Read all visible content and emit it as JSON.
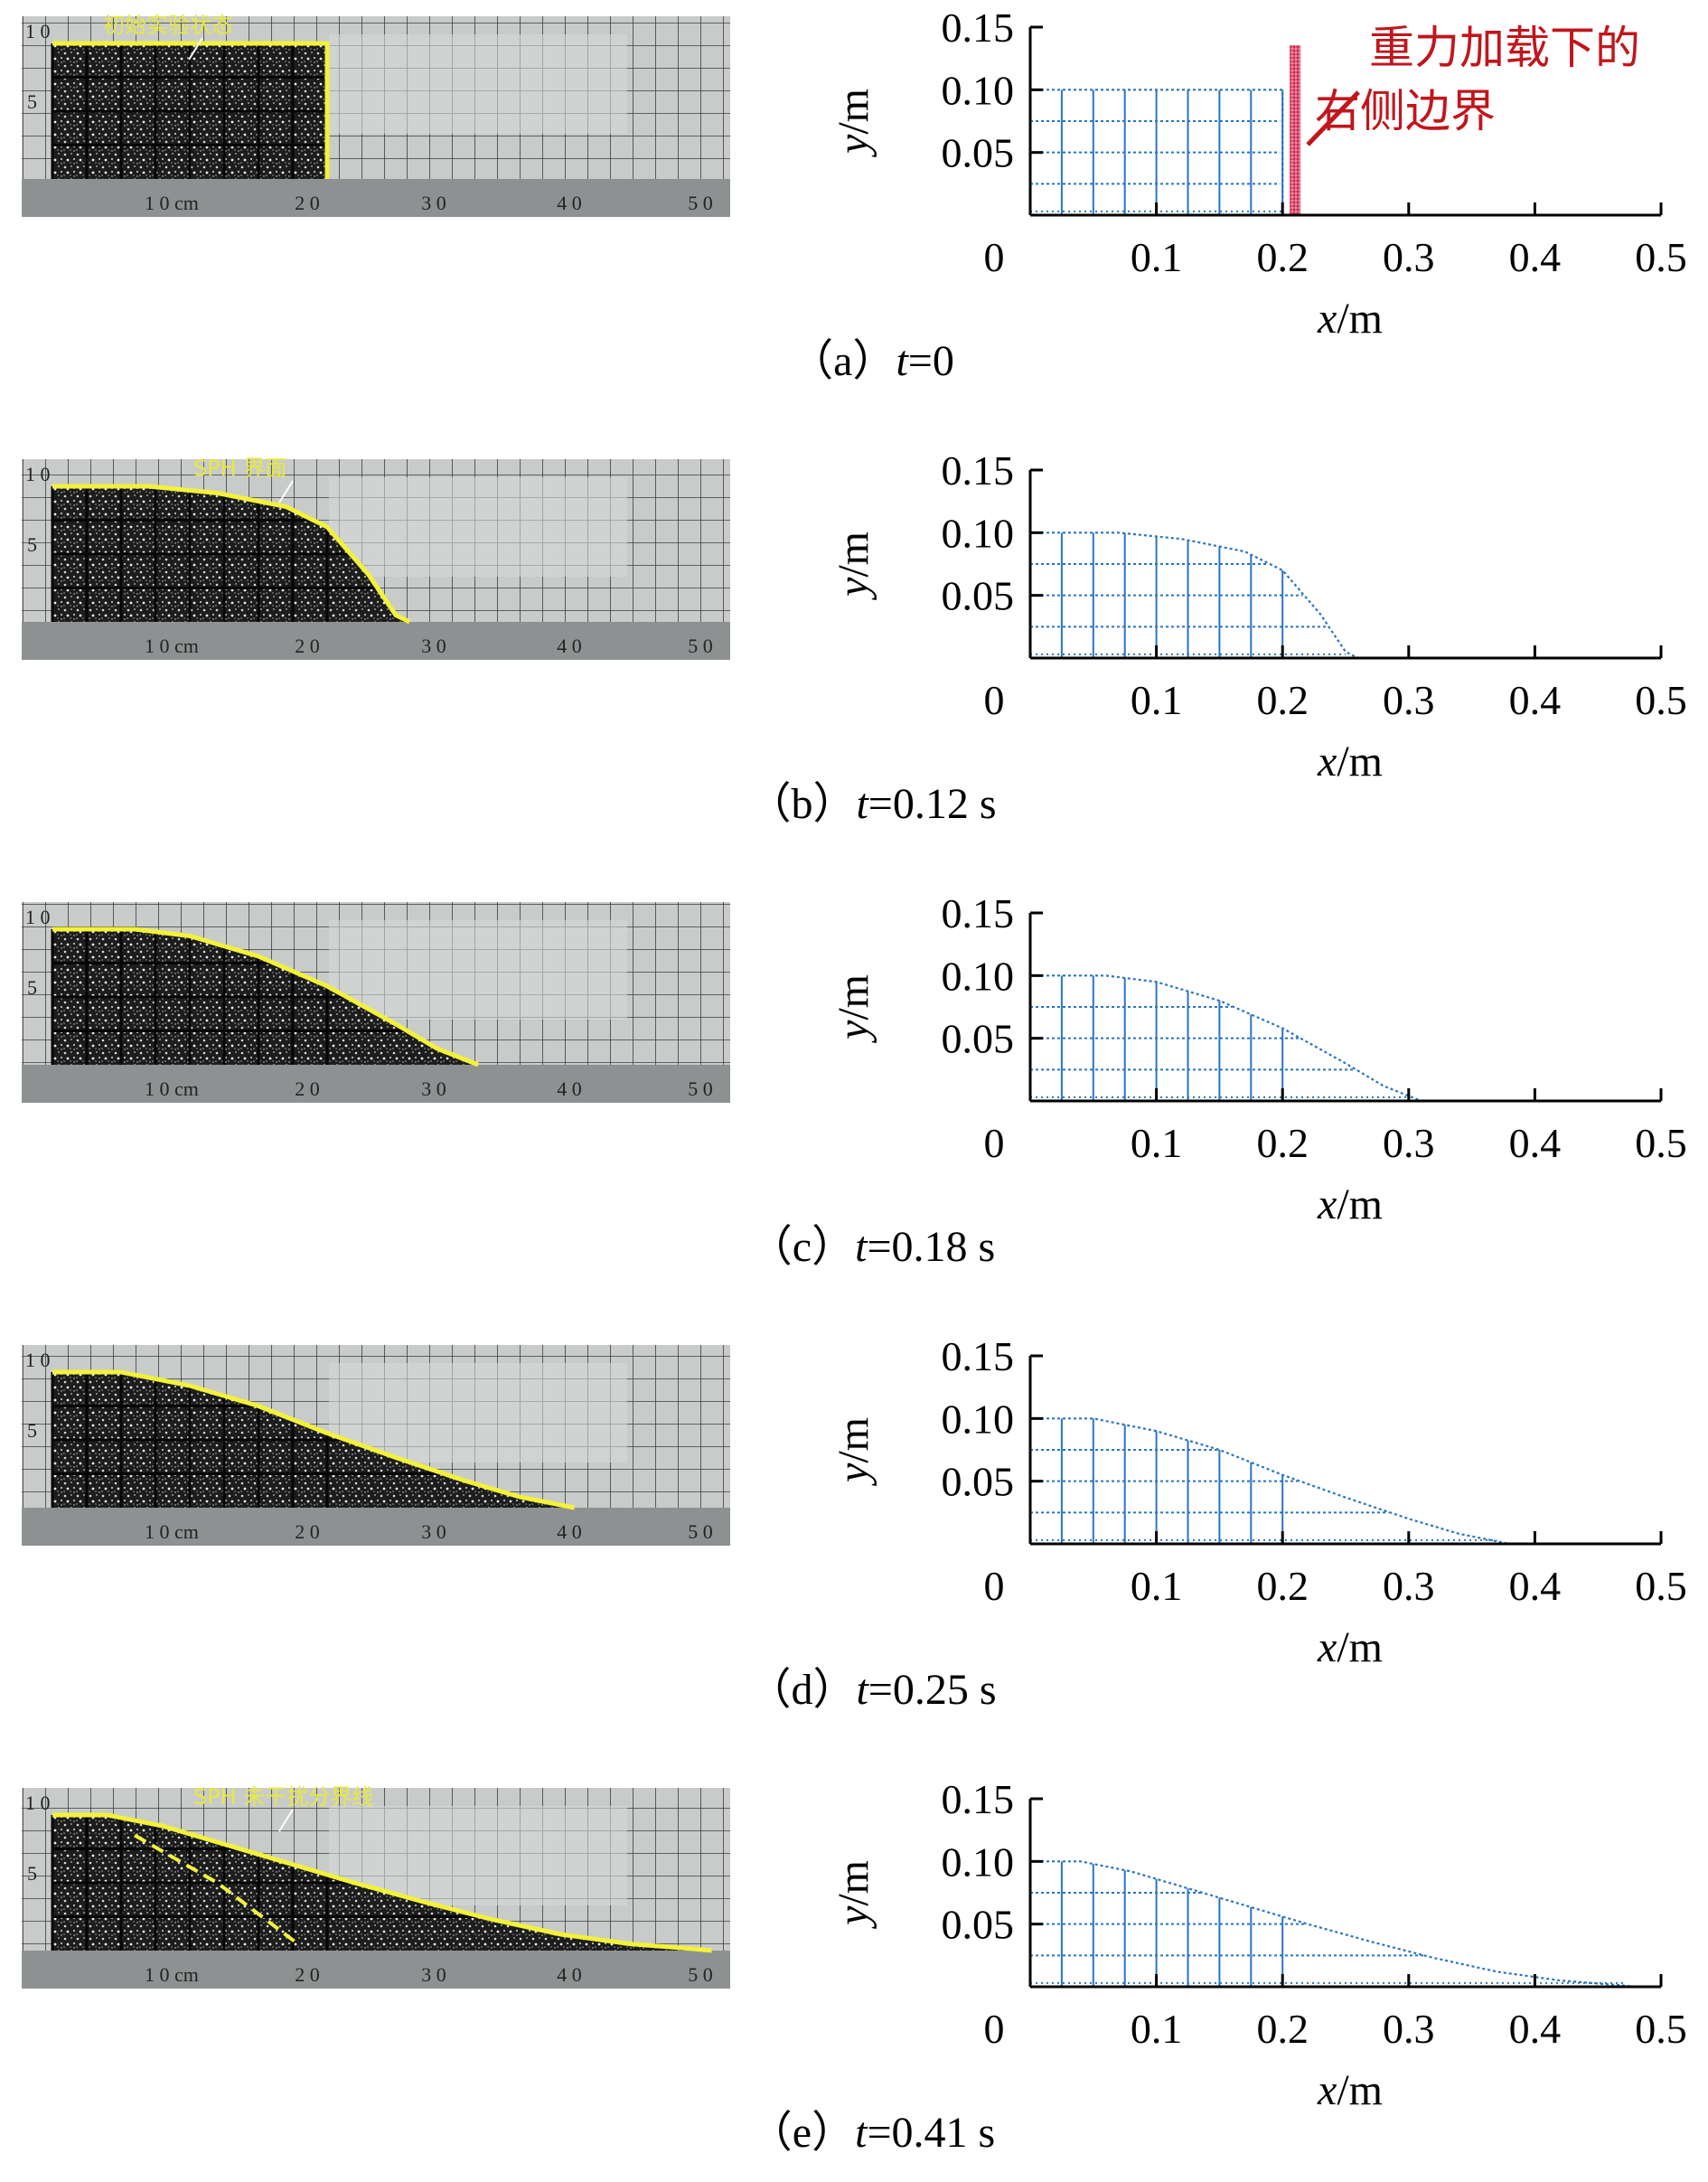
{
  "colors": {
    "mesh": "#2a74c6",
    "interface": "#f2f23a",
    "annotation": "#c0161c",
    "boundary": "#d3214a"
  },
  "ruler_labels": [
    "1 0 cm",
    "2 0",
    "3 0",
    "4 0",
    "5 0"
  ],
  "photo_scale_labels": [
    "1 0",
    "5"
  ],
  "panels": [
    {
      "caption_prefix": "（a）",
      "caption_var": "t",
      "caption_value": "=0",
      "photo_label": "初始实验状态",
      "annotation_lines": [
        "重力加载下的",
        "右侧边界"
      ],
      "front_x": 0.2,
      "boundary_x": 0.21
    },
    {
      "caption_prefix": "（b）",
      "caption_var": "t",
      "caption_value": "=0.12 s",
      "photo_label": "SPH 界面",
      "front_x": 0.25
    },
    {
      "caption_prefix": "（c）",
      "caption_var": "t",
      "caption_value": "=0.18 s",
      "photo_label": "",
      "front_x": 0.3
    },
    {
      "caption_prefix": "（d）",
      "caption_var": "t",
      "caption_value": "=0.25 s",
      "photo_label": "",
      "front_x": 0.37
    },
    {
      "caption_prefix": "（e）",
      "caption_var": "t",
      "caption_value": "=0.41 s",
      "photo_label": "SPH 未干扰分界线",
      "front_x": 0.47
    }
  ],
  "chart_data": [
    {
      "type": "scatter",
      "title": "",
      "xlabel_var": "x",
      "xlabel_unit": "/m",
      "ylabel_var": "y",
      "ylabel_unit": "/m",
      "xlim": [
        0,
        0.5
      ],
      "ylim": [
        0,
        0.15
      ],
      "xticks": [
        "0",
        "0.1",
        "0.2",
        "0.3",
        "0.4",
        "0.5"
      ],
      "yticks": [
        "0.05",
        "0.10",
        "0.15"
      ],
      "surface": [
        [
          0,
          0.1
        ],
        [
          0.2,
          0.1
        ],
        [
          0.2,
          0
        ]
      ],
      "boundary_x": 0.21
    },
    {
      "type": "scatter",
      "title": "",
      "xlabel_var": "x",
      "xlabel_unit": "/m",
      "ylabel_var": "y",
      "ylabel_unit": "/m",
      "xlim": [
        0,
        0.5
      ],
      "ylim": [
        0,
        0.15
      ],
      "xticks": [
        "0",
        "0.1",
        "0.2",
        "0.3",
        "0.4",
        "0.5"
      ],
      "yticks": [
        "0.05",
        "0.10",
        "0.15"
      ],
      "surface": [
        [
          0,
          0.1
        ],
        [
          0.07,
          0.1
        ],
        [
          0.12,
          0.095
        ],
        [
          0.17,
          0.085
        ],
        [
          0.2,
          0.07
        ],
        [
          0.23,
          0.035
        ],
        [
          0.25,
          0.005
        ],
        [
          0.26,
          0
        ]
      ]
    },
    {
      "type": "scatter",
      "title": "",
      "xlabel_var": "x",
      "xlabel_unit": "/m",
      "ylabel_var": "y",
      "ylabel_unit": "/m",
      "xlim": [
        0,
        0.5
      ],
      "ylim": [
        0,
        0.15
      ],
      "xticks": [
        "0",
        "0.1",
        "0.2",
        "0.3",
        "0.4",
        "0.5"
      ],
      "yticks": [
        "0.05",
        "0.10",
        "0.15"
      ],
      "surface": [
        [
          0,
          0.1
        ],
        [
          0.06,
          0.1
        ],
        [
          0.1,
          0.095
        ],
        [
          0.15,
          0.08
        ],
        [
          0.2,
          0.058
        ],
        [
          0.25,
          0.03
        ],
        [
          0.28,
          0.012
        ],
        [
          0.3,
          0.004
        ],
        [
          0.31,
          0
        ]
      ]
    },
    {
      "type": "scatter",
      "title": "",
      "xlabel_var": "x",
      "xlabel_unit": "/m",
      "ylabel_var": "y",
      "ylabel_unit": "/m",
      "xlim": [
        0,
        0.5
      ],
      "ylim": [
        0,
        0.15
      ],
      "xticks": [
        "0",
        "0.1",
        "0.2",
        "0.3",
        "0.4",
        "0.5"
      ],
      "yticks": [
        "0.05",
        "0.10",
        "0.15"
      ],
      "surface": [
        [
          0,
          0.1
        ],
        [
          0.05,
          0.1
        ],
        [
          0.1,
          0.09
        ],
        [
          0.15,
          0.075
        ],
        [
          0.2,
          0.055
        ],
        [
          0.25,
          0.037
        ],
        [
          0.3,
          0.02
        ],
        [
          0.34,
          0.008
        ],
        [
          0.37,
          0.002
        ],
        [
          0.38,
          0
        ]
      ]
    },
    {
      "type": "scatter",
      "title": "",
      "xlabel_var": "x",
      "xlabel_unit": "/m",
      "ylabel_var": "y",
      "ylabel_unit": "/m",
      "xlim": [
        0,
        0.5
      ],
      "ylim": [
        0,
        0.15
      ],
      "xticks": [
        "0",
        "0.1",
        "0.2",
        "0.3",
        "0.4",
        "0.5"
      ],
      "yticks": [
        "0.05",
        "0.10",
        "0.15"
      ],
      "surface": [
        [
          0,
          0.1
        ],
        [
          0.04,
          0.1
        ],
        [
          0.08,
          0.092
        ],
        [
          0.12,
          0.08
        ],
        [
          0.17,
          0.065
        ],
        [
          0.22,
          0.05
        ],
        [
          0.27,
          0.036
        ],
        [
          0.32,
          0.023
        ],
        [
          0.37,
          0.012
        ],
        [
          0.42,
          0.005
        ],
        [
          0.47,
          0.001
        ],
        [
          0.48,
          0
        ]
      ]
    }
  ]
}
